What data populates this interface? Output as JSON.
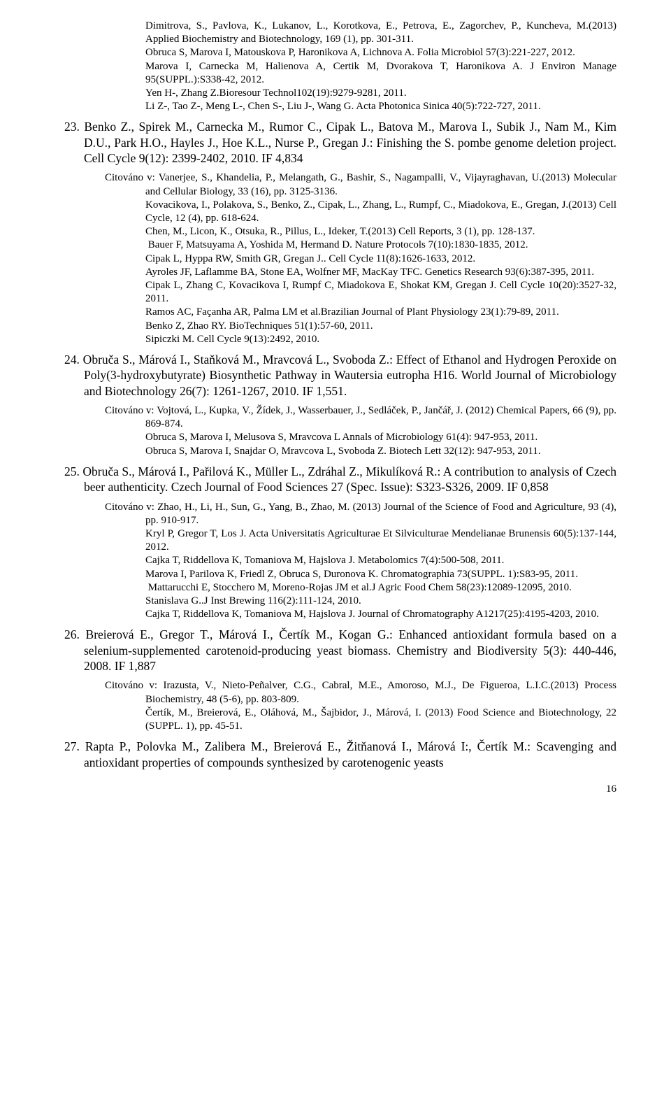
{
  "topcite": {
    "l1": "Dimitrova, S., Pavlova, K., Lukanov, L., Korotkova, E., Petrova, E., Zagorchev, P., Kuncheva, M.(2013) Applied Biochemistry and Biotechnology, 169 (1), pp. 301-311.",
    "l2": "Obruca S, Marova I, Matouskova P, Haronikova A, Lichnova A. Folia Microbiol 57(3):221-227, 2012.",
    "l3": "Marova I, Carnecka M, Halienova A, Certik M, Dvorakova T, Haronikova A. J Environ Manage 95(SUPPL.):S338-42, 2012.",
    "l4": "Yen H-, Zhang Z.Bioresour Technol102(19):9279-9281, 2011.",
    "l5": "Li Z-, Tao Z-, Meng L-, Chen S-, Liu J-, Wang G. Acta Photonica Sinica 40(5):722-727, 2011."
  },
  "e23": {
    "head": "23. Benko Z., Spirek M., Carnecka M., Rumor C., Cipak L., Batova M., Marova I., Subik J., Nam M., Kim D.U., Park H.O., Hayles J., Hoe K.L., Nurse P., Gregan J.: Finishing the S. pombe genome deletion project. Cell Cycle 9(12): 2399-2402, 2010. IF 4,834",
    "intro": "Citováno v: Vanerjee, S., Khandelia, P., Melangath, G., Bashir, S., Nagampalli, V., Vijayraghavan, U.(2013) Molecular and Cellular Biology, 33 (16), pp. 3125-3136.",
    "c1": "Kovacikova, I., Polakova, S., Benko, Z., Cipak, L., Zhang, L., Rumpf, C., Miadokova, E., Gregan, J.(2013) Cell Cycle, 12 (4), pp. 618-624.",
    "c2": "Chen, M., Licon, K., Otsuka, R., Pillus, L., Ideker, T.(2013) Cell Reports, 3 (1), pp. 128-137.",
    "c3": " Bauer F, Matsuyama A, Yoshida M, Hermand D. Nature Protocols 7(10):1830-1835, 2012.",
    "c4": "Cipak L, Hyppa RW, Smith GR, Gregan J.. Cell Cycle 11(8):1626-1633, 2012.",
    "c5": "Ayroles JF, Laflamme BA, Stone EA, Wolfner MF, MacKay TFC. Genetics Research 93(6):387-395, 2011.",
    "c6": "Cipak L, Zhang C, Kovacikova I, Rumpf C, Miadokova E, Shokat KM, Gregan J. Cell Cycle 10(20):3527-32, 2011.",
    "c7": "Ramos AC, Façanha AR, Palma LM et al.Brazilian Journal of Plant Physiology 23(1):79-89, 2011.",
    "c8": "Benko Z, Zhao RY. BioTechniques 51(1):57-60, 2011.",
    "c9": "Sipiczki M. Cell Cycle 9(13):2492, 2010."
  },
  "e24": {
    "head": "24. Obruča S., Márová I., Staňková M., Mravcová L., Svoboda Z.: Effect of Ethanol and Hydrogen Peroxide on Poly(3-hydroxybutyrate) Biosynthetic Pathway in Wautersia eutropha H16. World Journal of Microbiology and Biotechnology 26(7): 1261-1267, 2010. IF 1,551.",
    "intro": "Citováno v: Vojtová, L., Kupka, V., Žídek, J., Wasserbauer, J., Sedláček, P., Jančář, J. (2012) Chemical Papers, 66 (9), pp. 869-874.",
    "c1": "Obruca S, Marova I, Melusova S, Mravcova L Annals of Microbiology 61(4): 947-953, 2011.",
    "c2": "Obruca S, Marova I, Snajdar O, Mravcova L, Svoboda Z. Biotech Lett 32(12): 947-953, 2011."
  },
  "e25": {
    "head": "25. Obruča S., Márová I., Pařilová K., Müller L., Zdráhal Z., Mikulíková R.: A contribution to analysis of Czech beer authenticity. Czech Journal of  Food Sciences 27 (Spec. Issue): S323-S326, 2009. IF 0,858",
    "intro": "Citováno v: Zhao, H., Li, H., Sun, G., Yang, B., Zhao, M. (2013) Journal of the Science of Food and Agriculture, 93 (4), pp. 910-917.",
    "c1": "Kryl P, Gregor T, Los J. Acta Universitatis Agriculturae Et Silviculturae Mendelianae Brunensis 60(5):137-144, 2012.",
    "c2": "Cajka T, Riddellova K, Tomaniova M, Hajslova J. Metabolomics 7(4):500-508, 2011.",
    "c3": "Marova I, Parilova K, Friedl Z, Obruca S, Duronova K. Chromatographia 73(SUPPL. 1):S83-95, 2011.",
    "c4": " Mattarucchi E, Stocchero M, Moreno-Rojas JM et al.J Agric Food Chem 58(23):12089-12095, 2010.",
    "c5": "Stanislava G..J Inst Brewing 116(2):111-124, 2010.",
    "c6": "Cajka T, Riddellova K, Tomaniova M, Hajslova J. Journal of Chromatography A1217(25):4195-4203, 2010."
  },
  "e26": {
    "head": "26. Breierová E., Gregor T., Márová I., Čertík M., Kogan G.: Enhanced antioxidant formula based on a selenium-supplemented carotenoid-producing yeast biomass. Chemistry and Biodiversity 5(3): 440-446, 2008. IF 1,887",
    "intro": "Citováno v: Irazusta, V., Nieto-Peñalver, C.G., Cabral, M.E., Amoroso, M.J., De Figueroa, L.I.C.(2013) Process Biochemistry, 48 (5-6), pp. 803-809.",
    "c1": "Čertík, M., Breierová, E., Oláhová, M., Šajbidor, J., Márová, I. (2013) Food Science and Biotechnology, 22 (SUPPL. 1), pp. 45-51."
  },
  "e27": {
    "head": "27. Rapta P., Polovka M., Zalibera M., Breierová E., Žitňanová I., Márová I:, Čertík M.: Scavenging and antioxidant properties of compounds synthesized by carotenogenic yeasts"
  },
  "pagenum": "16"
}
